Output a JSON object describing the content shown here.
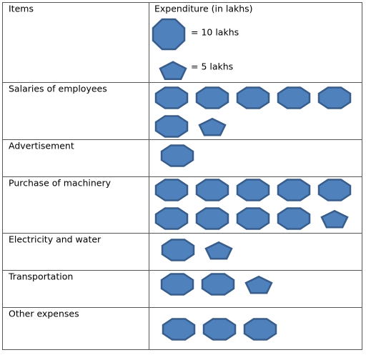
{
  "chart_data": {
    "type": "pictograph",
    "header": [
      "Items",
      "Expenditure (in lakhs)"
    ],
    "key": [
      {
        "value": 10,
        "label": "= 10 lakhs"
      },
      {
        "value": 5,
        "label": "= 5 lakhs"
      }
    ],
    "categories": [
      "Salaries of employees",
      "Advertisement",
      "Purchase of machinery",
      "Electricity and water",
      "Transportation",
      "Other expenses"
    ],
    "values": [
      65,
      10,
      95,
      15,
      25,
      30
    ],
    "color": "#4f81bd"
  }
}
